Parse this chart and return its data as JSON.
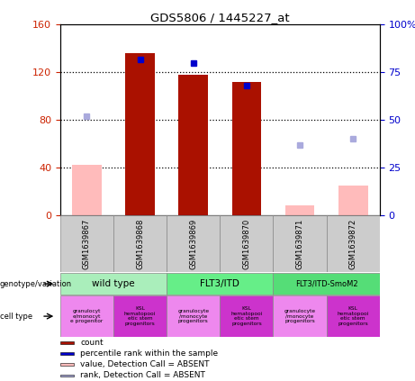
{
  "title": "GDS5806 / 1445227_at",
  "samples": [
    "GSM1639867",
    "GSM1639868",
    "GSM1639869",
    "GSM1639870",
    "GSM1639871",
    "GSM1639872"
  ],
  "bar_values": [
    null,
    136,
    118,
    112,
    null,
    null
  ],
  "bar_color": "#aa1100",
  "absent_bar_values": [
    42,
    null,
    null,
    null,
    8,
    25
  ],
  "absent_bar_color": "#ffbbbb",
  "rank_values": [
    null,
    82,
    80,
    68,
    null,
    null
  ],
  "rank_color": "#0000cc",
  "absent_rank_values": [
    52,
    null,
    null,
    null,
    37,
    40
  ],
  "absent_rank_color": "#aaaadd",
  "ylim_left": [
    0,
    160
  ],
  "ylim_right": [
    0,
    100
  ],
  "yticks_left": [
    0,
    40,
    80,
    120,
    160
  ],
  "yticks_right": [
    0,
    25,
    50,
    75,
    100
  ],
  "ytick_labels_left": [
    "0",
    "40",
    "80",
    "120",
    "160"
  ],
  "ytick_labels_right": [
    "0",
    "25",
    "50",
    "75",
    "100%"
  ],
  "left_axis_color": "#cc2200",
  "right_axis_color": "#0000cc",
  "bar_width": 0.55,
  "geno_groups": [
    {
      "label": "wild type",
      "start": 0,
      "end": 2,
      "color": "#aaeebb"
    },
    {
      "label": "FLT3/ITD",
      "start": 2,
      "end": 4,
      "color": "#66ee88"
    },
    {
      "label": "FLT3/ITD-SmoM2",
      "start": 4,
      "end": 6,
      "color": "#55dd77"
    }
  ],
  "cell_types": [
    {
      "label": "granulocyt\ne/monocyt\ne progenitor",
      "col": 0,
      "color": "#ee88ee"
    },
    {
      "label": "KSL\nhematopooi\netic stem\nprogenitors",
      "col": 1,
      "color": "#cc33cc"
    },
    {
      "label": "granulocyte\n/monocyte\nprogenitors",
      "col": 2,
      "color": "#ee88ee"
    },
    {
      "label": "KSL\nhematopooi\netic stem\nprogenitors",
      "col": 3,
      "color": "#cc33cc"
    },
    {
      "label": "granulocyte\n/monocyte\nprogenitors",
      "col": 4,
      "color": "#ee88ee"
    },
    {
      "label": "KSL\nhematopooi\netic stem\nprogenitors",
      "col": 5,
      "color": "#cc33cc"
    }
  ],
  "legend_items": [
    {
      "label": "count",
      "color": "#aa1100"
    },
    {
      "label": "percentile rank within the sample",
      "color": "#0000cc"
    },
    {
      "label": "value, Detection Call = ABSENT",
      "color": "#ffbbbb"
    },
    {
      "label": "rank, Detection Call = ABSENT",
      "color": "#aaaadd"
    }
  ]
}
